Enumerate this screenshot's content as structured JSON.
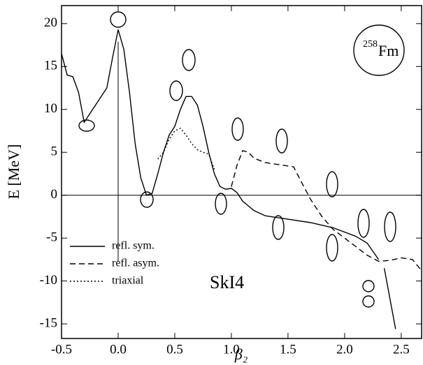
{
  "chart_data": {
    "type": "line",
    "xlabel": "β₂",
    "ylabel": "E [MeV]",
    "annotations": [
      "SkI4"
    ],
    "nucleus": {
      "mass": "258",
      "symbol": "Fm"
    },
    "xlim": [
      -0.5,
      2.68
    ],
    "ylim": [
      -16.7,
      22.1
    ],
    "xticks": [
      -0.5,
      {
        "value": 0,
        "label": "0.0"
      },
      0.5,
      {
        "value": 1,
        "label": "1.0"
      },
      1.5,
      {
        "value": 2,
        "label": "2.0"
      },
      2.5
    ],
    "yticks": [
      -15,
      -10,
      -5,
      0,
      5,
      10,
      15,
      20
    ],
    "legend": "lower left",
    "series": [
      {
        "name": "refl. sym.",
        "color": "#000000",
        "dash": "solid",
        "x": [
          -0.5,
          -0.45,
          -0.4,
          -0.35,
          -0.3,
          -0.25,
          -0.2,
          -0.1,
          -0.05,
          0,
          0.05,
          0.1,
          0.15,
          0.2,
          0.25,
          0.3,
          0.35,
          0.4,
          0.45,
          0.5,
          0.55,
          0.6,
          0.65,
          0.7,
          0.75,
          0.8,
          0.85,
          0.9,
          0.95,
          1.0,
          1.05,
          1.1,
          1.2,
          1.3,
          1.5,
          1.7,
          1.9,
          2.1,
          2.2,
          2.3,
          null,
          2.35,
          2.45
        ],
        "values": [
          16.5,
          14,
          13.8,
          12,
          8.5,
          9.5,
          10.5,
          12.5,
          16,
          19.3,
          17,
          12,
          6,
          2,
          0,
          0.2,
          2.5,
          5,
          7,
          8,
          10,
          11.5,
          11.5,
          10.5,
          8,
          5,
          2.5,
          1,
          0.7,
          0.8,
          0.3,
          -0.7,
          -1.8,
          -2.4,
          -2.8,
          -3.2,
          -3.8,
          -4.8,
          -5.6,
          -7.5,
          null,
          -8.5,
          -15.6
        ]
      },
      {
        "name": "refl. asym.",
        "color": "#000000",
        "dash": "dashed",
        "x": [
          1.0,
          1.05,
          1.1,
          1.15,
          1.2,
          1.3,
          1.4,
          1.55,
          1.6,
          1.7,
          1.8,
          1.9,
          2.0,
          2.1,
          2.2,
          2.3,
          2.4,
          2.5,
          2.6,
          2.68
        ],
        "values": [
          1,
          3.5,
          5.2,
          5,
          4.3,
          3.8,
          3.6,
          3.3,
          2,
          -0.5,
          -2.5,
          -4,
          -5,
          -6,
          -7,
          -7.7,
          -7.6,
          -7.3,
          -7.5,
          -8.8
        ]
      },
      {
        "name": "triaxial",
        "color": "#000000",
        "dash": "dotted",
        "x": [
          0.35,
          0.4,
          0.45,
          0.5,
          0.55,
          0.6,
          0.65,
          0.7,
          0.75,
          0.8,
          0.85
        ],
        "values": [
          4.2,
          5,
          6.5,
          7.5,
          7.8,
          7,
          6,
          5.3,
          5,
          4.8,
          3
        ]
      }
    ]
  }
}
